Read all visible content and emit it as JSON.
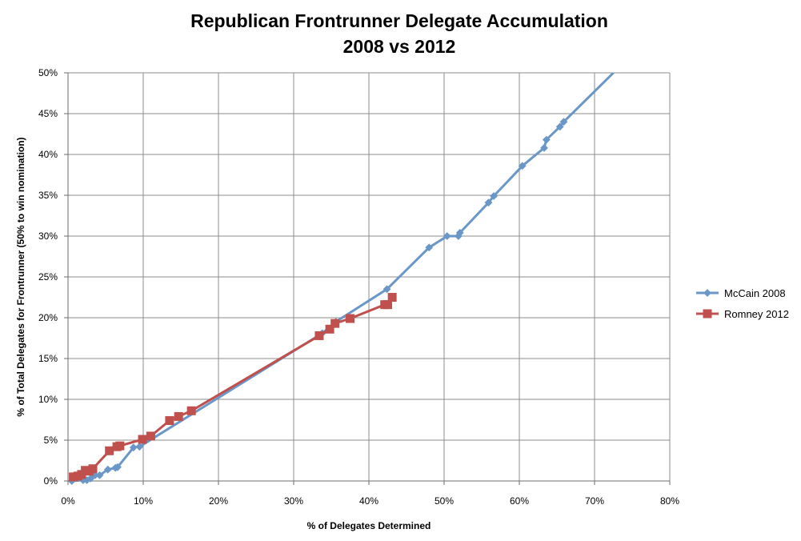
{
  "chart_data": {
    "type": "line",
    "title": "Republican Frontrunner Delegate Accumulation",
    "subtitle": "2008 vs 2012",
    "xlabel": "% of Delegates Determined",
    "ylabel": "% of Total Delegates for Frontrunner (50% to win nomination)",
    "xlim": [
      0,
      80
    ],
    "ylim": [
      0,
      50
    ],
    "x_ticks": [
      0,
      10,
      20,
      30,
      40,
      50,
      60,
      70,
      80
    ],
    "y_ticks": [
      0,
      5,
      10,
      15,
      20,
      25,
      30,
      35,
      40,
      45,
      50
    ],
    "x_tick_labels": [
      "0%",
      "10%",
      "20%",
      "30%",
      "40%",
      "50%",
      "60%",
      "70%",
      "80%"
    ],
    "y_tick_labels": [
      "0%",
      "5%",
      "10%",
      "15%",
      "20%",
      "25%",
      "30%",
      "35%",
      "40%",
      "45%",
      "50%"
    ],
    "grid": true,
    "legend_position": "right",
    "series": [
      {
        "name": "McCain 2008",
        "color": "#6a96c8",
        "marker": "diamond",
        "points": [
          [
            0.5,
            0.0
          ],
          [
            2.0,
            0.1
          ],
          [
            2.5,
            0.1
          ],
          [
            3.0,
            0.3
          ],
          [
            3.6,
            0.7
          ],
          [
            4.2,
            0.7
          ],
          [
            5.3,
            1.4
          ],
          [
            6.3,
            1.6
          ],
          [
            6.6,
            1.7
          ],
          [
            8.7,
            4.1
          ],
          [
            9.5,
            4.2
          ],
          [
            33.8,
            18.1
          ],
          [
            35.6,
            19.5
          ],
          [
            42.4,
            23.5
          ],
          [
            48.0,
            28.6
          ],
          [
            50.4,
            30.0
          ],
          [
            51.9,
            30.0
          ],
          [
            52.1,
            30.4
          ],
          [
            55.9,
            34.1
          ],
          [
            56.6,
            34.9
          ],
          [
            60.4,
            38.6
          ],
          [
            63.3,
            40.8
          ],
          [
            63.6,
            41.8
          ],
          [
            65.4,
            43.4
          ],
          [
            65.9,
            44.0
          ],
          [
            72.5,
            50.0
          ]
        ],
        "marker_count": 25
      },
      {
        "name": "Romney 2012",
        "color": "#c0504d",
        "marker": "square",
        "points": [
          [
            0.7,
            0.5
          ],
          [
            1.3,
            0.6
          ],
          [
            1.8,
            0.8
          ],
          [
            2.3,
            1.3
          ],
          [
            2.8,
            1.2
          ],
          [
            3.3,
            1.5
          ],
          [
            5.5,
            3.7
          ],
          [
            6.5,
            4.2
          ],
          [
            6.9,
            4.3
          ],
          [
            9.9,
            5.1
          ],
          [
            11.0,
            5.5
          ],
          [
            13.5,
            7.4
          ],
          [
            14.7,
            7.9
          ],
          [
            16.4,
            8.6
          ],
          [
            33.4,
            17.8
          ],
          [
            34.8,
            18.6
          ],
          [
            35.5,
            19.3
          ],
          [
            37.5,
            19.9
          ],
          [
            42.1,
            21.6
          ],
          [
            42.5,
            21.6
          ],
          [
            43.1,
            22.5
          ]
        ]
      }
    ]
  }
}
